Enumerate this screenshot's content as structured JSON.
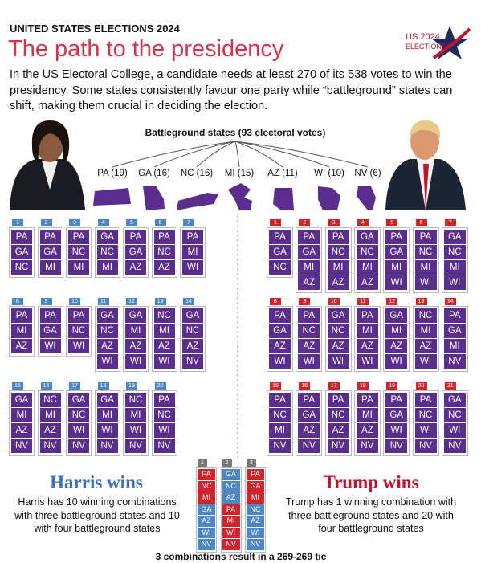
{
  "header": {
    "kicker": "UNITED STATES ELECTIONS 2024",
    "title": "The path to the presidency",
    "intro": "In the US Electoral College, a candidate needs at least 270 of its 538 votes to win the presidency. Some states consistently favour one party while “battleground” states can shift, making them crucial in deciding the election."
  },
  "logo": {
    "line1": "US 2024",
    "line2": "ELECTIONS"
  },
  "battleground": {
    "label": "Battleground states (93 electoral votes)",
    "states": [
      "PA (19)",
      "GA (16)",
      "NC (16)",
      "MI (15)",
      "AZ (11)",
      "WI (10)",
      "NV (6)"
    ],
    "color": "#5b2d8e"
  },
  "harris": {
    "heading": "Harris wins",
    "text": "Harris has 10 winning combinations with three battleground states and 10 with four battleground states",
    "color": "#3a6fc4",
    "tab_color": "#4a86c8",
    "combos": [
      {
        "number": "1",
        "states": [
          "PA",
          "GA",
          "NC"
        ]
      },
      {
        "number": "2",
        "states": [
          "PA",
          "GA",
          "MI"
        ]
      },
      {
        "number": "3",
        "states": [
          "PA",
          "NC",
          "MI"
        ]
      },
      {
        "number": "4",
        "states": [
          "GA",
          "NC",
          "MI"
        ]
      },
      {
        "number": "5",
        "states": [
          "PA",
          "GA",
          "AZ"
        ]
      },
      {
        "number": "6",
        "states": [
          "PA",
          "NC",
          "AZ"
        ]
      },
      {
        "number": "7",
        "states": [
          "PA",
          "MI",
          "WI"
        ]
      },
      {
        "number": "8",
        "states": [
          "PA",
          "MI",
          "AZ"
        ]
      },
      {
        "number": "9",
        "states": [
          "PA",
          "GA",
          "WI"
        ]
      },
      {
        "number": "10",
        "states": [
          "PA",
          "NC",
          "WI"
        ]
      },
      {
        "number": "11",
        "states": [
          "GA",
          "NC",
          "AZ",
          "WI"
        ]
      },
      {
        "number": "12",
        "states": [
          "GA",
          "MI",
          "AZ",
          "WI"
        ]
      },
      {
        "number": "13",
        "states": [
          "NC",
          "MI",
          "AZ",
          "WI"
        ]
      },
      {
        "number": "14",
        "states": [
          "GA",
          "NC",
          "AZ",
          "NV"
        ]
      },
      {
        "number": "15",
        "states": [
          "GA",
          "MI",
          "AZ",
          "NV"
        ]
      },
      {
        "number": "16",
        "states": [
          "NC",
          "MI",
          "AZ",
          "NV"
        ]
      },
      {
        "number": "17",
        "states": [
          "GA",
          "NC",
          "WI",
          "NV"
        ]
      },
      {
        "number": "18",
        "states": [
          "GA",
          "MI",
          "WI",
          "NV"
        ]
      },
      {
        "number": "19",
        "states": [
          "NC",
          "MI",
          "WI",
          "NV"
        ]
      },
      {
        "number": "20",
        "states": [
          "PA",
          "NC",
          "WI",
          "NV"
        ]
      }
    ]
  },
  "trump": {
    "heading": "Trump wins",
    "text": "Trump has 1 winning combination with three battleground states and 20 with four battleground states",
    "color": "#c8102e",
    "tab_color": "#d2232a",
    "combos": [
      {
        "number": "1",
        "states": [
          "PA",
          "GA",
          "NC"
        ]
      },
      {
        "number": "2",
        "states": [
          "PA",
          "GA",
          "MI",
          "AZ"
        ]
      },
      {
        "number": "3",
        "states": [
          "PA",
          "NC",
          "MI",
          "AZ"
        ]
      },
      {
        "number": "4",
        "states": [
          "GA",
          "NC",
          "MI",
          "AZ"
        ]
      },
      {
        "number": "5",
        "states": [
          "PA",
          "GA",
          "MI",
          "WI"
        ]
      },
      {
        "number": "6",
        "states": [
          "PA",
          "NC",
          "MI",
          "WI"
        ]
      },
      {
        "number": "7",
        "states": [
          "GA",
          "NC",
          "MI",
          "WI"
        ]
      },
      {
        "number": "8",
        "states": [
          "PA",
          "GA",
          "AZ",
          "WI"
        ]
      },
      {
        "number": "9",
        "states": [
          "PA",
          "NC",
          "AZ",
          "WI"
        ]
      },
      {
        "number": "10",
        "states": [
          "GA",
          "NC",
          "AZ",
          "WI"
        ]
      },
      {
        "number": "11",
        "states": [
          "PA",
          "MI",
          "AZ",
          "WI"
        ]
      },
      {
        "number": "12",
        "states": [
          "GA",
          "MI",
          "AZ",
          "WI"
        ]
      },
      {
        "number": "13",
        "states": [
          "NC",
          "MI",
          "AZ",
          "WI"
        ]
      },
      {
        "number": "14",
        "states": [
          "PA",
          "GA",
          "MI",
          "NV"
        ]
      },
      {
        "number": "15",
        "states": [
          "PA",
          "NC",
          "MI",
          "NV"
        ]
      },
      {
        "number": "16",
        "states": [
          "PA",
          "GA",
          "AZ",
          "NV"
        ]
      },
      {
        "number": "17",
        "states": [
          "PA",
          "NC",
          "AZ",
          "NV"
        ]
      },
      {
        "number": "18",
        "states": [
          "PA",
          "MI",
          "AZ",
          "NV"
        ]
      },
      {
        "number": "19",
        "states": [
          "PA",
          "GA",
          "WI",
          "NV"
        ]
      },
      {
        "number": "20",
        "states": [
          "PA",
          "NC",
          "WI",
          "NV"
        ]
      },
      {
        "number": "21",
        "states": [
          "GA",
          "NC",
          "WI",
          "NV"
        ]
      }
    ]
  },
  "tie": {
    "note": "3 combinations result in a 269-269 tie",
    "tab_color": "#777777",
    "columns": [
      {
        "number": "1",
        "cells": [
          {
            "state": "PA",
            "color": "#d2232a"
          },
          {
            "state": "NC",
            "color": "#d2232a"
          },
          {
            "state": "MI",
            "color": "#d2232a"
          },
          {
            "state": "GA",
            "color": "#4a86c8"
          },
          {
            "state": "AZ",
            "color": "#4a86c8"
          },
          {
            "state": "WI",
            "color": "#4a86c8"
          },
          {
            "state": "NV",
            "color": "#4a86c8"
          }
        ]
      },
      {
        "number": "2",
        "cells": [
          {
            "state": "GA",
            "color": "#4a86c8"
          },
          {
            "state": "NC",
            "color": "#4a86c8"
          },
          {
            "state": "AZ",
            "color": "#4a86c8"
          },
          {
            "state": "PA",
            "color": "#d2232a"
          },
          {
            "state": "MI",
            "color": "#d2232a"
          },
          {
            "state": "WI",
            "color": "#d2232a"
          },
          {
            "state": "NV",
            "color": "#d2232a"
          }
        ]
      },
      {
        "number": "3",
        "cells": [
          {
            "state": "PA",
            "color": "#d2232a"
          },
          {
            "state": "GA",
            "color": "#d2232a"
          },
          {
            "state": "MI",
            "color": "#d2232a"
          },
          {
            "state": "NC",
            "color": "#4a86c8"
          },
          {
            "state": "AZ",
            "color": "#4a86c8"
          },
          {
            "state": "WI",
            "color": "#4a86c8"
          },
          {
            "state": "NV",
            "color": "#4a86c8"
          }
        ]
      }
    ]
  }
}
